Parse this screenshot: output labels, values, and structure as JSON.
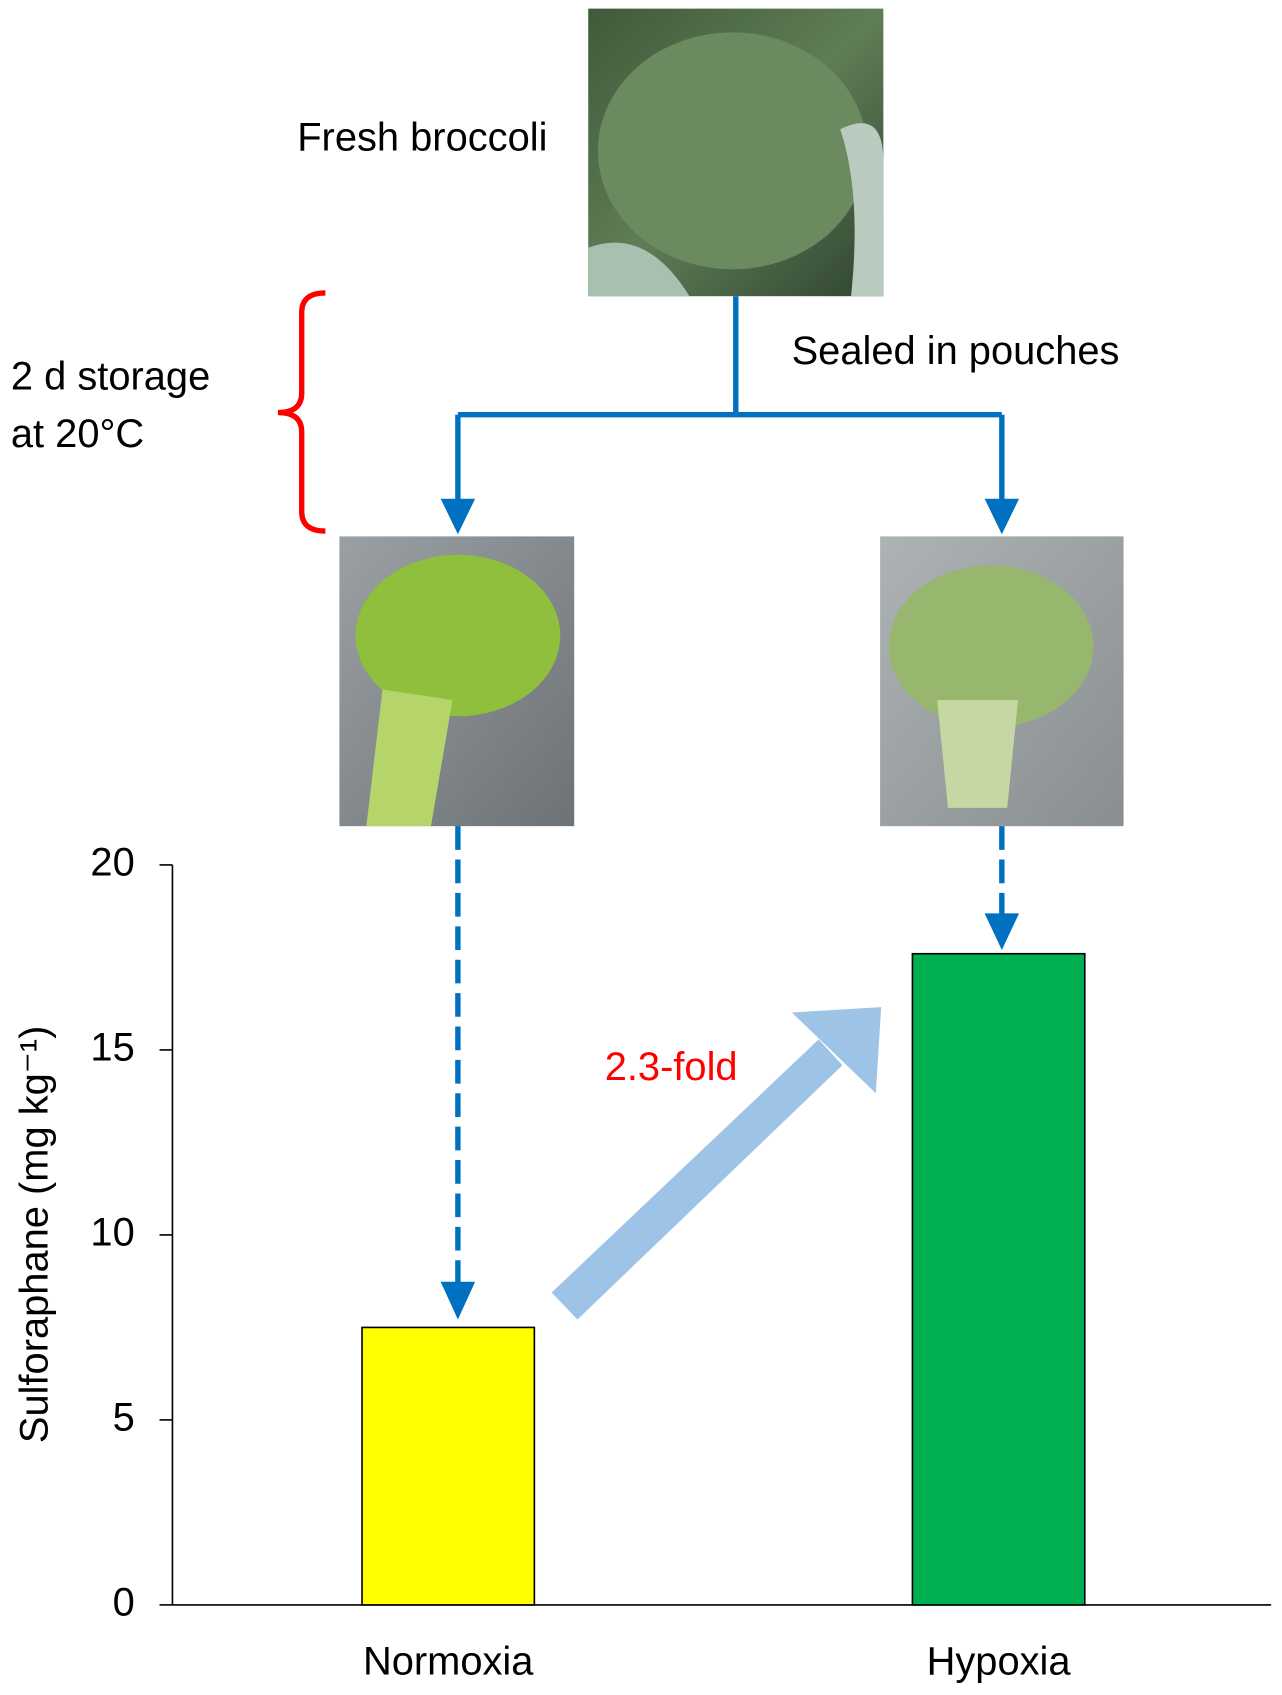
{
  "chart_data": {
    "type": "bar",
    "categories": [
      "Normoxia",
      "Hypoxia"
    ],
    "values": [
      7.5,
      17.6
    ],
    "colors": [
      "#ffff00",
      "#00b050"
    ],
    "y_label": "Sulforaphane (mg kg⁻¹)",
    "ylim": [
      0,
      20
    ],
    "yticks": [
      0,
      5,
      10,
      15,
      20
    ],
    "annotations": {
      "fresh": "Fresh broccoli",
      "sealed": "Sealed in pouches",
      "storage_1": "2 d storage",
      "storage_2": "at 20°C",
      "fold": "2.3-fold"
    }
  }
}
